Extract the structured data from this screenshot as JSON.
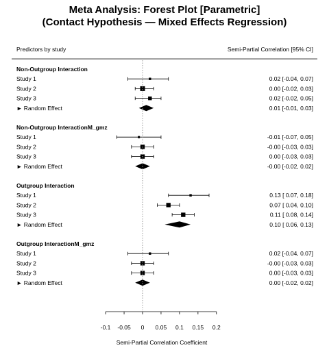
{
  "chart_data": {
    "type": "forest",
    "title_line1": "Meta Analysis: Forest Plot [Parametric]",
    "title_line2": "(Contact Hypothesis — Mixed Effects Regression)",
    "left_header": "Predictors by study",
    "right_header": "Semi-Partial Correlation [95% CI]",
    "xlabel": "Semi-Partial Correlation Coefficient",
    "xlim": [
      -0.1,
      0.2
    ],
    "xticks": [
      -0.1,
      -0.05,
      0,
      0.05,
      0.1,
      0.15,
      0.2
    ],
    "xtick_labels": [
      "-0.1",
      "-0.05",
      "0",
      "0.05",
      "0.1",
      "0.15",
      "0.2"
    ],
    "reference_line": 0,
    "groups": [
      {
        "name": "Non-Outgroup Interaction",
        "studies": [
          {
            "label": "Study 1",
            "estimate": 0.02,
            "lower": -0.04,
            "upper": 0.07,
            "ci_text": "0.02 [-0.04, 0.07]"
          },
          {
            "label": "Study 2",
            "estimate": 0.0,
            "lower": -0.02,
            "upper": 0.03,
            "ci_text": "0.00 [-0.02, 0.03]"
          },
          {
            "label": "Study 3",
            "estimate": 0.02,
            "lower": -0.02,
            "upper": 0.05,
            "ci_text": "0.02 [-0.02, 0.05]"
          }
        ],
        "random_effect": {
          "label": "► Random Effect",
          "estimate": 0.01,
          "lower": -0.01,
          "upper": 0.03,
          "ci_text": "0.01 [-0.01, 0.03]"
        }
      },
      {
        "name": "Non-Outgroup InteractionM_gmz",
        "studies": [
          {
            "label": "Study 1",
            "estimate": -0.01,
            "lower": -0.07,
            "upper": 0.05,
            "ci_text": "-0.01 [-0.07, 0.05]"
          },
          {
            "label": "Study 2",
            "estimate": -0.0,
            "lower": -0.03,
            "upper": 0.03,
            "ci_text": "-0.00 [-0.03, 0.03]"
          },
          {
            "label": "Study 3",
            "estimate": 0.0,
            "lower": -0.03,
            "upper": 0.03,
            "ci_text": "0.00 [-0.03, 0.03]"
          }
        ],
        "random_effect": {
          "label": "► Random Effect",
          "estimate": -0.0,
          "lower": -0.02,
          "upper": 0.02,
          "ci_text": "-0.00 [-0.02, 0.02]"
        }
      },
      {
        "name": "Outgroup Interaction",
        "studies": [
          {
            "label": "Study 1",
            "estimate": 0.13,
            "lower": 0.07,
            "upper": 0.18,
            "ci_text": "0.13 [ 0.07, 0.18]"
          },
          {
            "label": "Study 2",
            "estimate": 0.07,
            "lower": 0.04,
            "upper": 0.1,
            "ci_text": "0.07 [ 0.04, 0.10]"
          },
          {
            "label": "Study 3",
            "estimate": 0.11,
            "lower": 0.08,
            "upper": 0.14,
            "ci_text": "0.11 [ 0.08, 0.14]"
          }
        ],
        "random_effect": {
          "label": "► Random Effect",
          "estimate": 0.1,
          "lower": 0.06,
          "upper": 0.13,
          "ci_text": "0.10 [ 0.06, 0.13]"
        }
      },
      {
        "name": "Outgroup InteractionM_gmz",
        "studies": [
          {
            "label": "Study 1",
            "estimate": 0.02,
            "lower": -0.04,
            "upper": 0.07,
            "ci_text": "0.02 [-0.04, 0.07]"
          },
          {
            "label": "Study 2",
            "estimate": -0.0,
            "lower": -0.03,
            "upper": 0.03,
            "ci_text": "-0.00 [-0.03, 0.03]"
          },
          {
            "label": "Study 3",
            "estimate": 0.0,
            "lower": -0.03,
            "upper": 0.03,
            "ci_text": "0.00 [-0.03, 0.03]"
          }
        ],
        "random_effect": {
          "label": "► Random Effect",
          "estimate": 0.0,
          "lower": -0.02,
          "upper": 0.02,
          "ci_text": "0.00 [-0.02, 0.02]"
        }
      }
    ]
  }
}
